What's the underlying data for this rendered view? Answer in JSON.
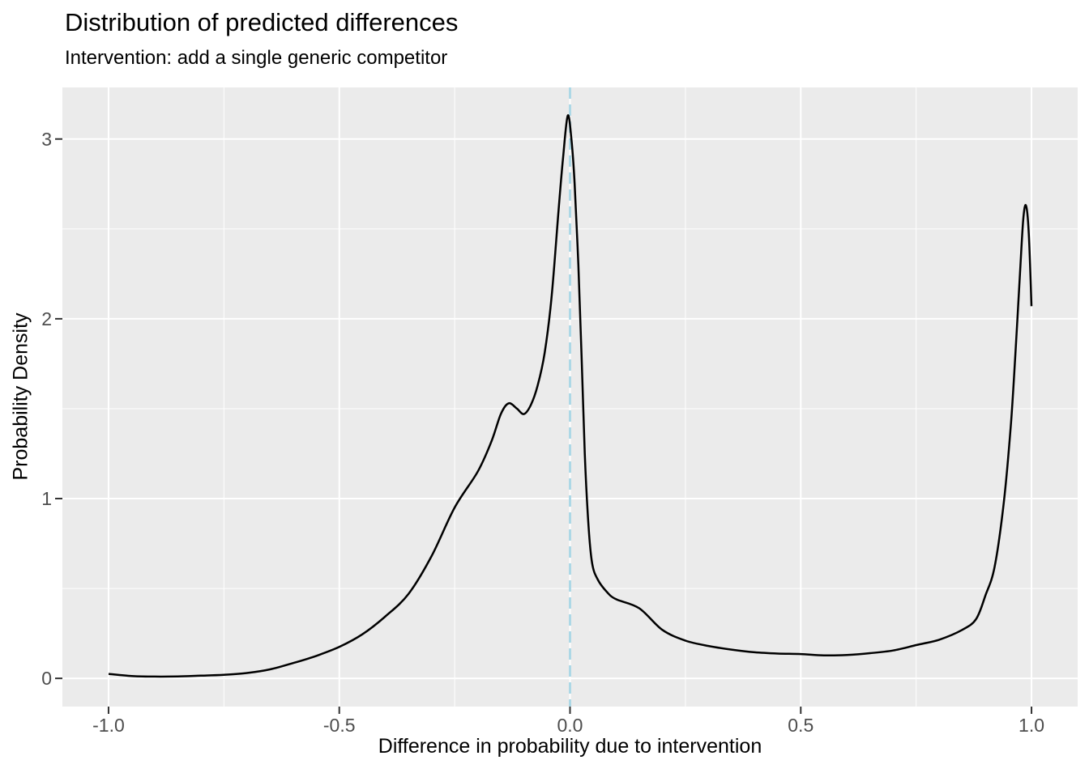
{
  "title": "Distribution of predicted differences",
  "subtitle": "Intervention: add a single generic competitor",
  "colors": {
    "panel_bg": "#EBEBEB",
    "grid_major": "#FFFFFF",
    "grid_minor": "#FFFFFF",
    "curve": "#000000",
    "vline": "#ADD8E6",
    "tick_mark": "#333333",
    "tick_label": "#4D4D4D",
    "text": "#000000"
  },
  "chart_data": {
    "type": "line",
    "title": "Distribution of predicted differences",
    "subtitle": "Intervention: add a single generic competitor",
    "xlabel": "Difference in probability due to intervention",
    "ylabel": "Probability Density",
    "xlim": [
      -1.1,
      1.1
    ],
    "ylim": [
      -0.157,
      3.287
    ],
    "grid": "major+minor",
    "legend": false,
    "x_ticks": [
      -1.0,
      -0.5,
      0.0,
      0.5,
      1.0
    ],
    "x_tick_labels": [
      "-1.0",
      "-0.5",
      "0.0",
      "0.5",
      "1.0"
    ],
    "x_minor_ticks": [
      -0.75,
      -0.25,
      0.25,
      0.75
    ],
    "y_ticks": [
      0,
      1,
      2,
      3
    ],
    "y_tick_labels": [
      "0",
      "1",
      "2",
      "3"
    ],
    "y_minor_ticks": [
      0.5,
      1.5,
      2.5
    ],
    "vline": {
      "x": 0,
      "linetype": "dashed",
      "color": "#ADD8E6"
    },
    "series": [
      {
        "name": "density",
        "color": "#000000",
        "points": [
          [
            -1.0,
            0.025
          ],
          [
            -0.95,
            0.013
          ],
          [
            -0.9,
            0.01
          ],
          [
            -0.85,
            0.011
          ],
          [
            -0.8,
            0.015
          ],
          [
            -0.75,
            0.02
          ],
          [
            -0.7,
            0.03
          ],
          [
            -0.65,
            0.05
          ],
          [
            -0.6,
            0.085
          ],
          [
            -0.55,
            0.125
          ],
          [
            -0.5,
            0.175
          ],
          [
            -0.45,
            0.245
          ],
          [
            -0.4,
            0.345
          ],
          [
            -0.35,
            0.47
          ],
          [
            -0.3,
            0.68
          ],
          [
            -0.25,
            0.95
          ],
          [
            -0.2,
            1.15
          ],
          [
            -0.17,
            1.32
          ],
          [
            -0.15,
            1.47
          ],
          [
            -0.133,
            1.53
          ],
          [
            -0.115,
            1.5
          ],
          [
            -0.1,
            1.47
          ],
          [
            -0.085,
            1.52
          ],
          [
            -0.07,
            1.63
          ],
          [
            -0.055,
            1.81
          ],
          [
            -0.04,
            2.12
          ],
          [
            -0.025,
            2.6
          ],
          [
            -0.015,
            2.9
          ],
          [
            -0.005,
            3.13
          ],
          [
            0.003,
            3.0
          ],
          [
            0.01,
            2.75
          ],
          [
            0.018,
            2.3
          ],
          [
            0.025,
            1.8
          ],
          [
            0.032,
            1.25
          ],
          [
            0.04,
            0.85
          ],
          [
            0.048,
            0.64
          ],
          [
            0.06,
            0.55
          ],
          [
            0.08,
            0.48
          ],
          [
            0.1,
            0.44
          ],
          [
            0.15,
            0.39
          ],
          [
            0.2,
            0.27
          ],
          [
            0.25,
            0.21
          ],
          [
            0.3,
            0.18
          ],
          [
            0.35,
            0.16
          ],
          [
            0.4,
            0.145
          ],
          [
            0.45,
            0.138
          ],
          [
            0.5,
            0.135
          ],
          [
            0.55,
            0.128
          ],
          [
            0.6,
            0.13
          ],
          [
            0.65,
            0.14
          ],
          [
            0.7,
            0.155
          ],
          [
            0.75,
            0.185
          ],
          [
            0.8,
            0.215
          ],
          [
            0.85,
            0.27
          ],
          [
            0.88,
            0.33
          ],
          [
            0.9,
            0.46
          ],
          [
            0.92,
            0.62
          ],
          [
            0.94,
            0.98
          ],
          [
            0.955,
            1.4
          ],
          [
            0.965,
            1.8
          ],
          [
            0.975,
            2.25
          ],
          [
            0.982,
            2.55
          ],
          [
            0.988,
            2.63
          ],
          [
            0.994,
            2.48
          ],
          [
            1.0,
            2.07
          ]
        ]
      }
    ]
  }
}
